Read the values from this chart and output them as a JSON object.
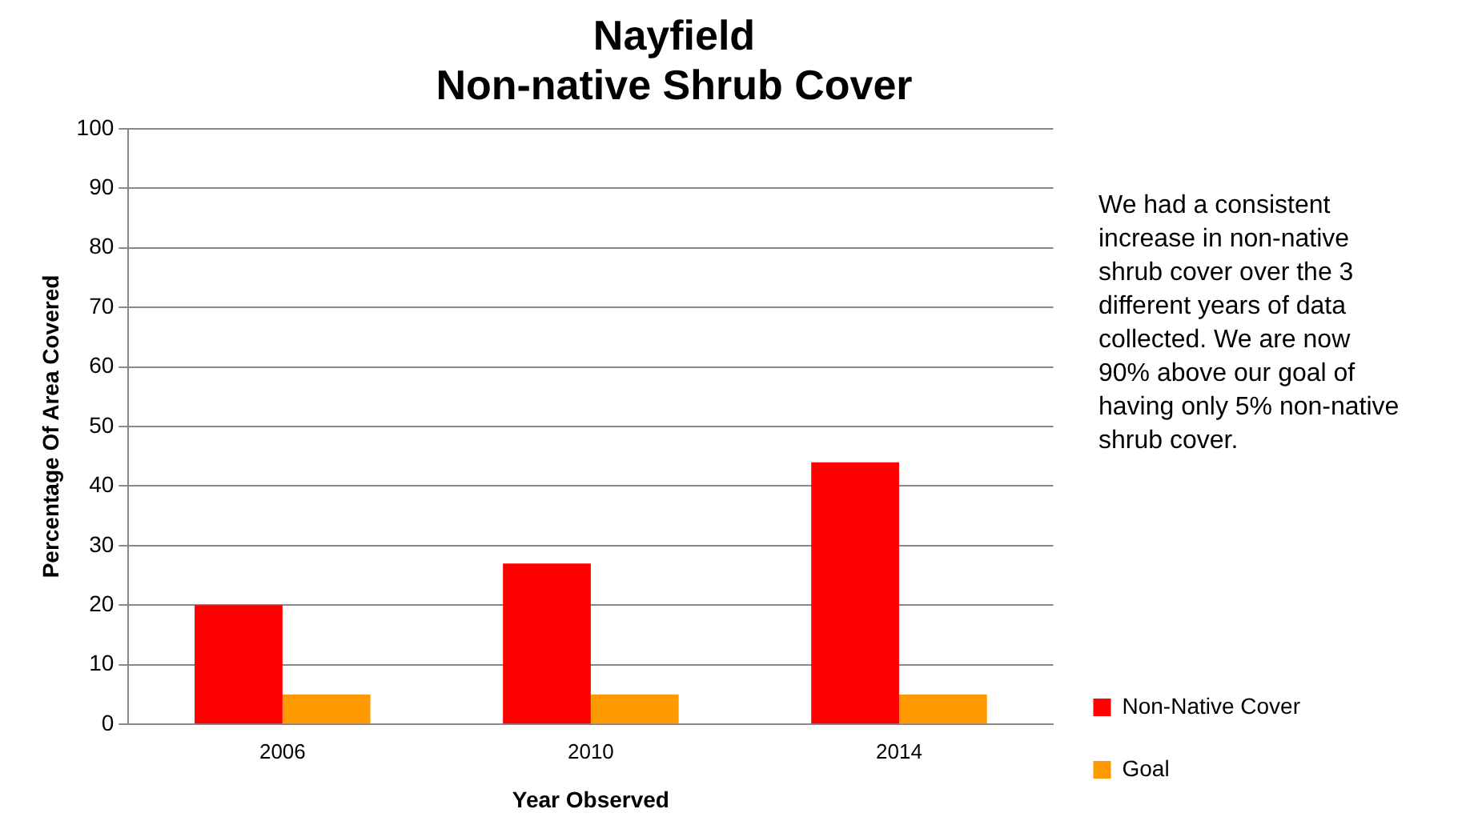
{
  "chart_data": {
    "type": "bar",
    "title": "Nayfield\nNon-native Shrub Cover",
    "xlabel": "Year Observed",
    "ylabel": "Percentage Of Area Covered",
    "categories": [
      "2006",
      "2010",
      "2014"
    ],
    "series": [
      {
        "name": "Non-Native Cover",
        "color": "#ff0000",
        "values": [
          20,
          27,
          44
        ]
      },
      {
        "name": "Goal",
        "color": "#ff9900",
        "values": [
          5,
          5,
          5
        ]
      }
    ],
    "ylim": [
      0,
      100
    ],
    "yticks": [
      0,
      10,
      20,
      30,
      40,
      50,
      60,
      70,
      80,
      90,
      100
    ],
    "grid": "y",
    "legend": "right",
    "annotations": [
      "We had a consistent increase in non-native shrub cover over the 3 different years of data collected. We are now 90% above our goal of having only 5% non-native shrub cover."
    ]
  }
}
